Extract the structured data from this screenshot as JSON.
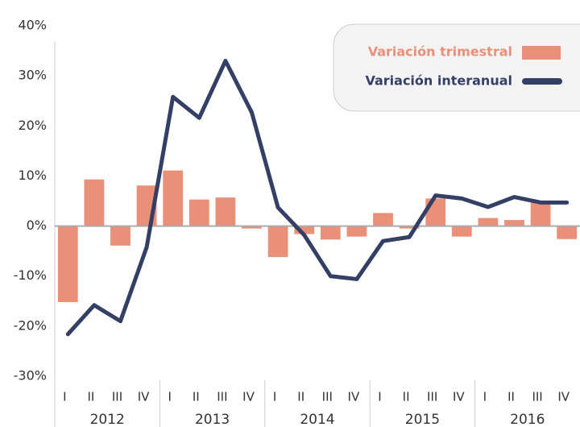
{
  "chart_data": {
    "type": "bar-line",
    "categories": [
      "I",
      "II",
      "III",
      "IV",
      "I",
      "II",
      "III",
      "IV",
      "I",
      "II",
      "III",
      "IV",
      "I",
      "II",
      "III",
      "IV",
      "I",
      "II",
      "III",
      "IV"
    ],
    "groups": [
      "2012",
      "2013",
      "2014",
      "2015",
      "2016"
    ],
    "series": [
      {
        "name": "Variación trimestral",
        "type": "bar",
        "color": "#ea8f78",
        "values": [
          -15.2,
          9.3,
          -3.9,
          8.1,
          11.1,
          5.3,
          5.7,
          -0.5,
          -6.2,
          -1.6,
          -2.7,
          -2.1,
          2.6,
          -0.5,
          5.5,
          -2.1,
          1.6,
          1.2,
          4.8,
          -2.6
        ]
      },
      {
        "name": "Variación interanual",
        "type": "line",
        "color": "#343f66",
        "values": [
          -21.6,
          -15.8,
          -19,
          -4.2,
          25.8,
          21.6,
          33,
          22.7,
          3.7,
          -1.8,
          -10,
          -10.6,
          -3,
          -2.2,
          6.1,
          5.5,
          3.8,
          5.8,
          4.7,
          4.7
        ]
      }
    ],
    "ylim": [
      -30,
      40
    ],
    "yticks": [
      {
        "value": -30,
        "label": "-30%"
      },
      {
        "value": -20,
        "label": "-20%"
      },
      {
        "value": -10,
        "label": "-10%"
      },
      {
        "value": 0,
        "label": "0%"
      },
      {
        "value": 10,
        "label": "10%"
      },
      {
        "value": 20,
        "label": "20%"
      },
      {
        "value": 30,
        "label": "30%"
      },
      {
        "value": 40,
        "label": "40%"
      }
    ],
    "grid": false,
    "legend": "top-right"
  }
}
